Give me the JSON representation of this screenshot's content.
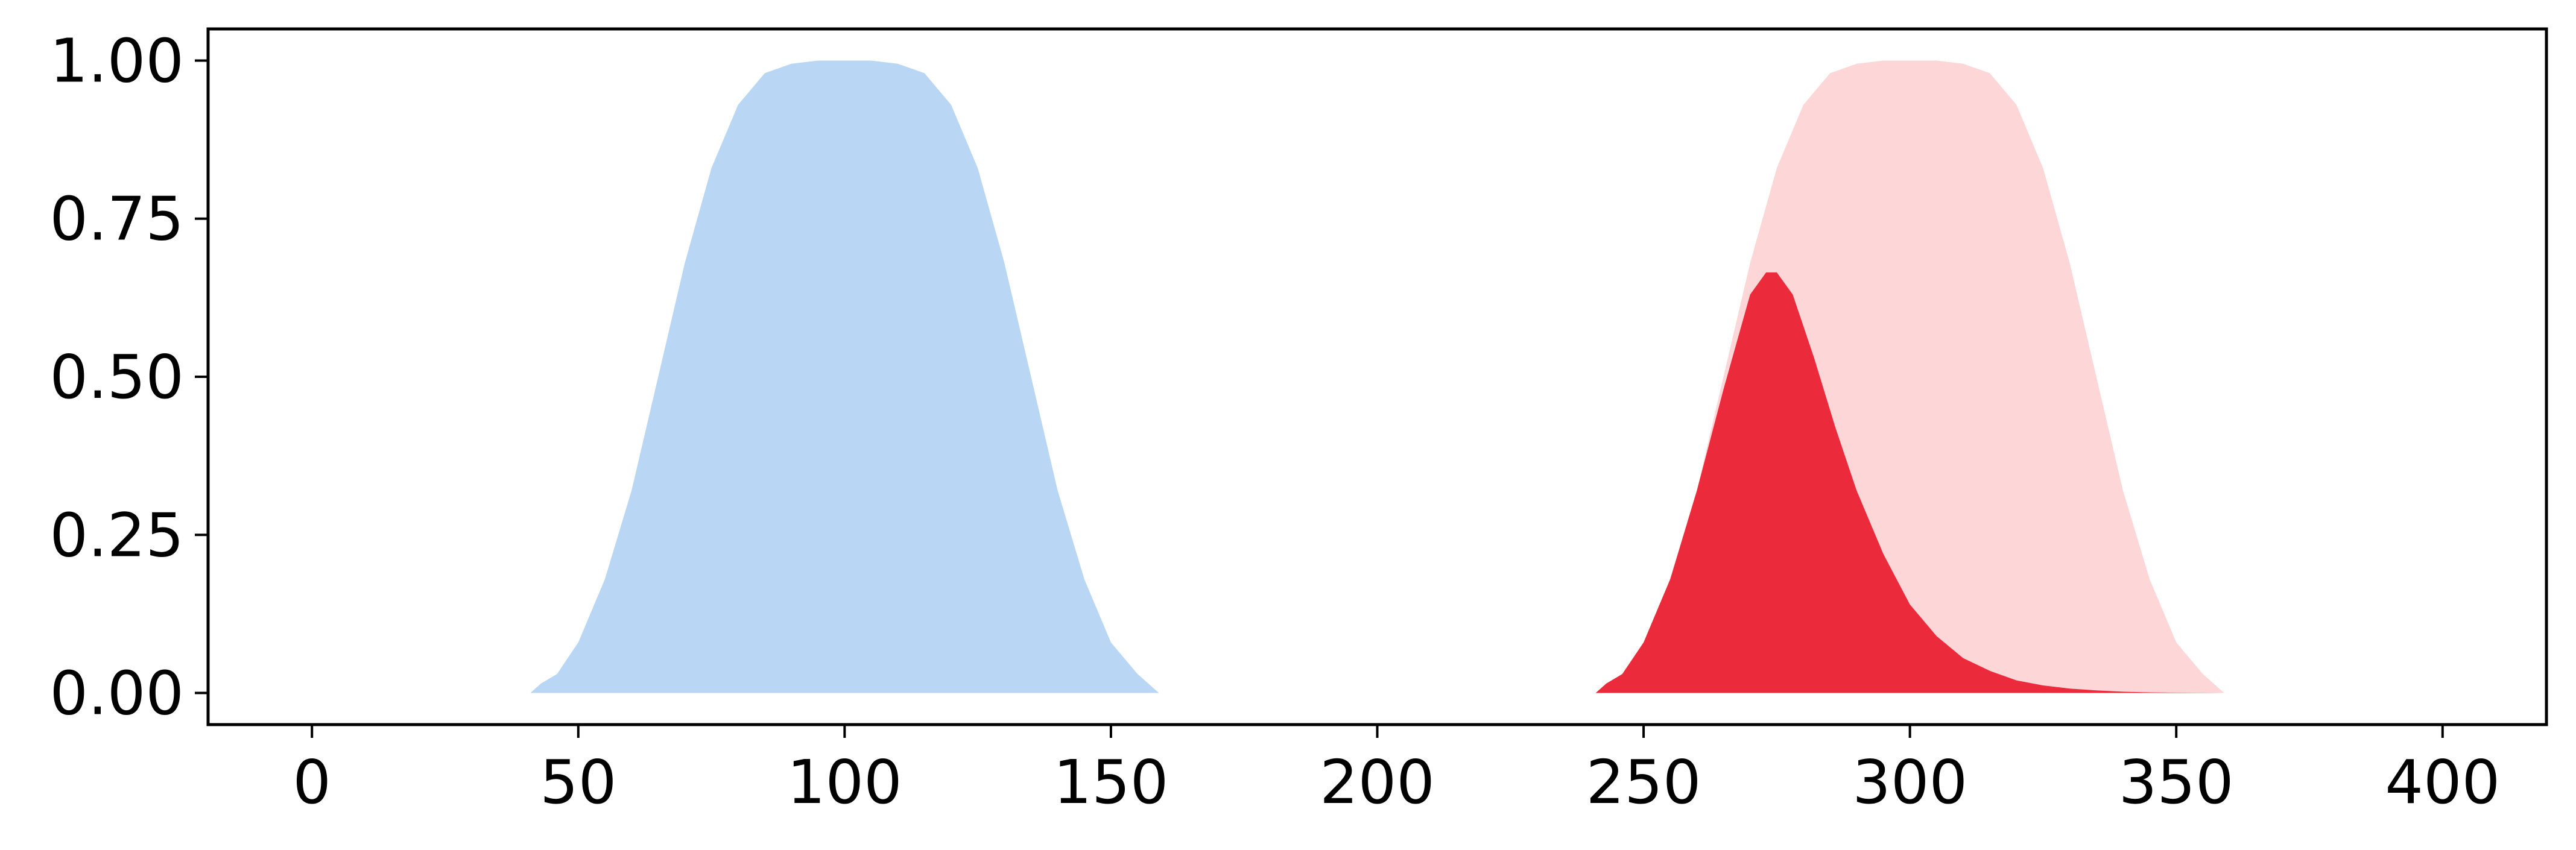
{
  "chart_data": {
    "type": "area",
    "title": "",
    "xlabel": "",
    "ylabel": "",
    "xlim": [
      -19.5,
      419.5
    ],
    "ylim": [
      -0.05,
      1.05
    ],
    "x_ticks": [
      0,
      50,
      100,
      150,
      200,
      250,
      300,
      350,
      400
    ],
    "y_ticks": [
      0.0,
      0.25,
      0.5,
      0.75,
      1.0
    ],
    "x_tick_labels": [
      "0",
      "50",
      "100",
      "150",
      "200",
      "250",
      "300",
      "350",
      "400"
    ],
    "y_tick_labels": [
      "0.00",
      "0.25",
      "0.50",
      "0.75",
      "1.00"
    ],
    "grid": false,
    "legend": "none",
    "series": [
      {
        "color": "#b9d7f4",
        "x": [
          41,
          43,
          46,
          50,
          55,
          60,
          65,
          70,
          75,
          80,
          85,
          90,
          95,
          100,
          105,
          110,
          115,
          120,
          125,
          130,
          135,
          140,
          145,
          150,
          155,
          159
        ],
        "y": [
          0.0,
          0.015,
          0.03,
          0.08,
          0.18,
          0.32,
          0.5,
          0.68,
          0.83,
          0.93,
          0.98,
          0.995,
          1.0,
          1.0,
          1.0,
          0.995,
          0.98,
          0.93,
          0.83,
          0.68,
          0.5,
          0.32,
          0.18,
          0.08,
          0.03,
          0.0
        ]
      },
      {
        "color": "#fdd7d8",
        "x": [
          241,
          243,
          246,
          250,
          255,
          260,
          265,
          270,
          275,
          280,
          285,
          290,
          295,
          300,
          305,
          310,
          315,
          320,
          325,
          330,
          335,
          340,
          345,
          350,
          355,
          359
        ],
        "y": [
          0.0,
          0.015,
          0.03,
          0.08,
          0.18,
          0.32,
          0.5,
          0.68,
          0.83,
          0.93,
          0.98,
          0.995,
          1.0,
          1.0,
          1.0,
          0.995,
          0.98,
          0.93,
          0.83,
          0.68,
          0.5,
          0.32,
          0.18,
          0.08,
          0.03,
          0.0
        ]
      },
      {
        "color": "#eb2b3b",
        "x": [
          241,
          243,
          246,
          250,
          255,
          260,
          265,
          270,
          273,
          275,
          278,
          282,
          286,
          290,
          295,
          300,
          305,
          310,
          315,
          320,
          325,
          330,
          335,
          340,
          345,
          350,
          355,
          359
        ],
        "y": [
          0.0,
          0.015,
          0.03,
          0.08,
          0.18,
          0.32,
          0.48,
          0.63,
          0.665,
          0.665,
          0.63,
          0.53,
          0.42,
          0.32,
          0.22,
          0.14,
          0.09,
          0.055,
          0.035,
          0.02,
          0.012,
          0.007,
          0.004,
          0.002,
          0.001,
          0.0005,
          0.0002,
          0.0
        ]
      }
    ]
  }
}
